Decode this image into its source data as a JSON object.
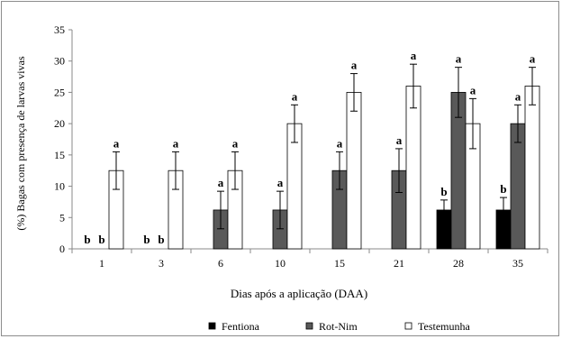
{
  "chart_data": {
    "type": "bar",
    "title": "",
    "xlabel": "Dias após a aplicação (DAA)",
    "ylabel": "(%) Bagas com presença de larvas vivas",
    "ylim": [
      0,
      35
    ],
    "yticks": [
      0,
      5,
      10,
      15,
      20,
      25,
      30,
      35
    ],
    "grid": false,
    "legend_position": "bottom",
    "categories": [
      "1",
      "3",
      "6",
      "10",
      "15",
      "21",
      "28",
      "35"
    ],
    "series": [
      {
        "name": "Fentiona",
        "color": "#000000",
        "values": [
          0,
          0,
          0,
          0,
          0,
          0,
          6.2,
          6.2
        ],
        "errors": [
          0,
          0,
          0,
          0,
          0,
          0,
          1.6,
          2.0
        ],
        "letters": [
          "b",
          "b",
          "",
          "",
          "",
          "",
          "b",
          "b"
        ]
      },
      {
        "name": "Rot-Nim",
        "color": "#595959",
        "values": [
          0,
          0,
          6.2,
          6.2,
          12.5,
          12.5,
          25,
          20
        ],
        "errors": [
          0,
          0,
          3.0,
          3.0,
          3.0,
          3.5,
          4.0,
          3.0
        ],
        "letters": [
          "b",
          "b",
          "a",
          "a",
          "a",
          "a",
          "a",
          "a"
        ]
      },
      {
        "name": "Testemunha",
        "color": "#ffffff",
        "values": [
          12.5,
          12.5,
          12.5,
          20,
          25,
          26,
          20,
          26
        ],
        "errors": [
          3.0,
          3.0,
          3.0,
          3.0,
          3.0,
          3.5,
          4.0,
          3.0
        ],
        "letters": [
          "a",
          "a",
          "a",
          "a",
          "a",
          "a",
          "a",
          "a"
        ]
      }
    ]
  }
}
